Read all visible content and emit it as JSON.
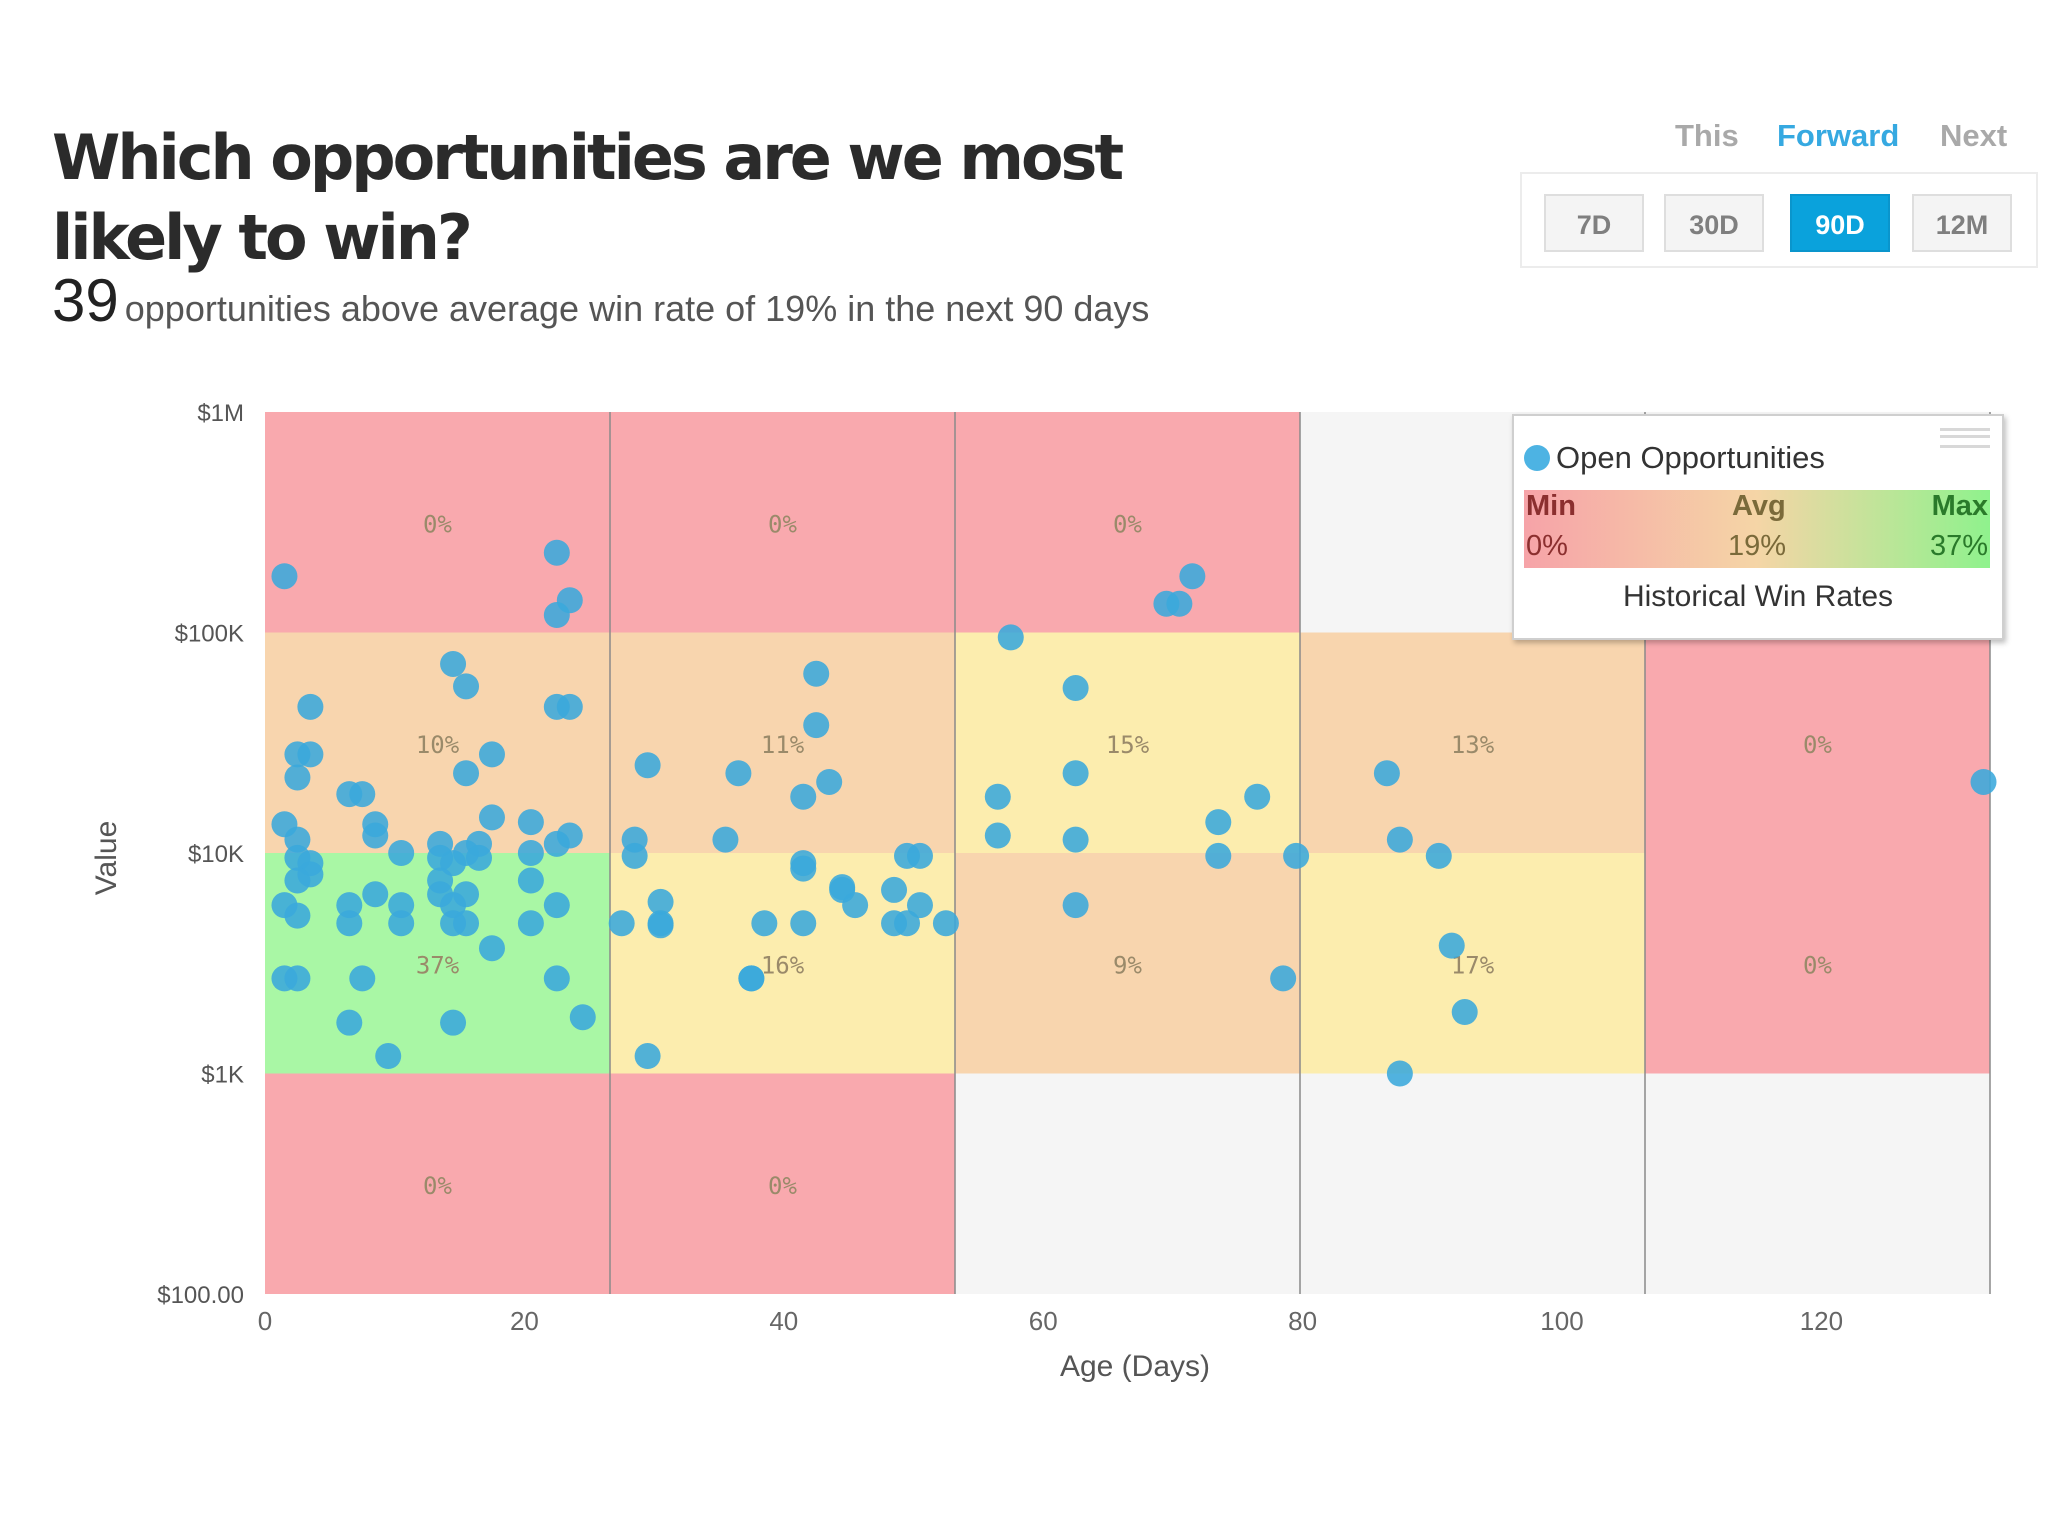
{
  "header": {
    "title": "Which opportunities are we most likely to win?",
    "count": "39",
    "subtitle": "opportunities above average win rate of 19% in the next 90 days"
  },
  "period_toggle": {
    "items": [
      "This",
      "Forward",
      "Next"
    ],
    "active": "Forward"
  },
  "range_buttons": {
    "items": [
      "7D",
      "30D",
      "90D",
      "12M"
    ],
    "active": "90D"
  },
  "legend": {
    "series_label": "Open Opportunities",
    "min_label": "Min",
    "avg_label": "Avg",
    "max_label": "Max",
    "min_value": "0%",
    "avg_value": "19%",
    "max_value": "37%",
    "caption": "Historical Win Rates"
  },
  "colors": {
    "point": "#3aa8dc",
    "accent": "#36a9e1",
    "button_active": "#0aa2dc",
    "cell_red": "#f9a9ae",
    "cell_orange": "#f8d5ae",
    "cell_yellow": "#fcedae",
    "cell_green": "#a9f7a5",
    "cell_empty": "#f5f5f5"
  },
  "chart_data": {
    "type": "scatter",
    "title": "",
    "xlabel": "Age (Days)",
    "ylabel": "Value",
    "xlim": [
      0,
      133
    ],
    "ylim": [
      100,
      1000000
    ],
    "yscale": "log",
    "x_ticks": [
      0,
      20,
      40,
      60,
      80,
      100,
      120
    ],
    "y_ticks": [
      100,
      1000,
      10000,
      100000,
      1000000
    ],
    "y_tick_labels": [
      "$100.00",
      "$1K",
      "$10K",
      "$100K",
      "$1M"
    ],
    "x_bin_edges": [
      0,
      26.6,
      53.2,
      79.8,
      106.4,
      133
    ],
    "y_bin_edges": [
      100,
      1000,
      10000,
      100000,
      1000000
    ],
    "win_rate_cells": [
      {
        "col": 0,
        "row": 0,
        "label": "",
        "color": "red"
      },
      {
        "col": 1,
        "row": 0,
        "label": "",
        "color": "red"
      },
      {
        "col": 2,
        "row": 0,
        "label": "",
        "color": "empty"
      },
      {
        "col": 3,
        "row": 0,
        "label": "",
        "color": "empty"
      },
      {
        "col": 4,
        "row": 0,
        "label": "",
        "color": "empty"
      },
      {
        "col": 0,
        "row": 1,
        "label": "37%",
        "color": "green"
      },
      {
        "col": 1,
        "row": 1,
        "label": "16%",
        "color": "yellow"
      },
      {
        "col": 2,
        "row": 1,
        "label": "9%",
        "color": "orange"
      },
      {
        "col": 3,
        "row": 1,
        "label": "17%",
        "color": "yellow"
      },
      {
        "col": 4,
        "row": 1,
        "label": "0%",
        "color": "red"
      },
      {
        "col": 0,
        "row": 2,
        "label": "10%",
        "color": "orange"
      },
      {
        "col": 1,
        "row": 2,
        "label": "11%",
        "color": "orange"
      },
      {
        "col": 2,
        "row": 2,
        "label": "15%",
        "color": "yellow"
      },
      {
        "col": 3,
        "row": 2,
        "label": "13%",
        "color": "orange"
      },
      {
        "col": 4,
        "row": 2,
        "label": "0%",
        "color": "red"
      },
      {
        "col": 0,
        "row": 3,
        "label": "0%",
        "color": "red"
      },
      {
        "col": 1,
        "row": 3,
        "label": "0%",
        "color": "red"
      },
      {
        "col": 2,
        "row": 3,
        "label": "0%",
        "color": "red"
      },
      {
        "col": 3,
        "row": 3,
        "label": "",
        "color": "empty"
      },
      {
        "col": 4,
        "row": 3,
        "label": "",
        "color": "empty"
      }
    ],
    "row0_labels": {
      "0": "0%",
      "1": "0%"
    },
    "series": [
      {
        "name": "Open Opportunities",
        "points": [
          [
            1.5,
            180000
          ],
          [
            22.5,
            230000
          ],
          [
            23.5,
            140000
          ],
          [
            22.5,
            120000
          ],
          [
            14.5,
            72000
          ],
          [
            15.5,
            57000
          ],
          [
            3.5,
            46000
          ],
          [
            22.5,
            46000
          ],
          [
            23.5,
            46000
          ],
          [
            2.5,
            28000
          ],
          [
            3.5,
            28000
          ],
          [
            17.5,
            28000
          ],
          [
            2.5,
            22000
          ],
          [
            15.5,
            23000
          ],
          [
            6.5,
            18500
          ],
          [
            7.5,
            18500
          ],
          [
            17.5,
            14500
          ],
          [
            20.5,
            13800
          ],
          [
            1.5,
            13500
          ],
          [
            8.5,
            13500
          ],
          [
            8.5,
            12000
          ],
          [
            2.5,
            11500
          ],
          [
            13.5,
            11000
          ],
          [
            16.5,
            11000
          ],
          [
            23.5,
            12000
          ],
          [
            22.5,
            11000
          ],
          [
            10.5,
            10000
          ],
          [
            15.5,
            10000
          ],
          [
            20.5,
            10000
          ],
          [
            2.5,
            9500
          ],
          [
            3.5,
            9000
          ],
          [
            13.5,
            9500
          ],
          [
            14.5,
            9000
          ],
          [
            16.5,
            9500
          ],
          [
            3.5,
            8000
          ],
          [
            2.5,
            7500
          ],
          [
            13.5,
            7500
          ],
          [
            20.5,
            7500
          ],
          [
            8.5,
            6500
          ],
          [
            13.5,
            6500
          ],
          [
            15.5,
            6500
          ],
          [
            1.5,
            5800
          ],
          [
            6.5,
            5800
          ],
          [
            10.5,
            5800
          ],
          [
            14.5,
            5800
          ],
          [
            22.5,
            5800
          ],
          [
            2.5,
            5200
          ],
          [
            6.5,
            4800
          ],
          [
            10.5,
            4800
          ],
          [
            14.5,
            4800
          ],
          [
            15.5,
            4800
          ],
          [
            20.5,
            4800
          ],
          [
            17.5,
            3700
          ],
          [
            1.5,
            2700
          ],
          [
            2.5,
            2700
          ],
          [
            7.5,
            2700
          ],
          [
            22.5,
            2700
          ],
          [
            24.5,
            1800
          ],
          [
            6.5,
            1700
          ],
          [
            14.5,
            1700
          ],
          [
            9.5,
            1200
          ],
          [
            42.5,
            65000
          ],
          [
            42.5,
            38000
          ],
          [
            29.5,
            25000
          ],
          [
            36.5,
            23000
          ],
          [
            43.5,
            21000
          ],
          [
            41.5,
            18000
          ],
          [
            28.5,
            11500
          ],
          [
            35.5,
            11500
          ],
          [
            28.5,
            9700
          ],
          [
            41.5,
            9000
          ],
          [
            41.5,
            8500
          ],
          [
            49.5,
            9700
          ],
          [
            50.5,
            9700
          ],
          [
            44.5,
            7000
          ],
          [
            44.5,
            6800
          ],
          [
            48.5,
            6800
          ],
          [
            30.5,
            6000
          ],
          [
            45.5,
            5800
          ],
          [
            50.5,
            5800
          ],
          [
            27.5,
            4800
          ],
          [
            30.5,
            4800
          ],
          [
            30.5,
            4700
          ],
          [
            38.5,
            4800
          ],
          [
            41.5,
            4800
          ],
          [
            48.5,
            4800
          ],
          [
            49.5,
            4800
          ],
          [
            52.5,
            4800
          ],
          [
            37.5,
            2700
          ],
          [
            37.5,
            2700
          ],
          [
            29.5,
            1200
          ],
          [
            71.5,
            180000
          ],
          [
            69.5,
            135000
          ],
          [
            70.5,
            135000
          ],
          [
            57.5,
            95000
          ],
          [
            62.5,
            56000
          ],
          [
            62.5,
            23000
          ],
          [
            56.5,
            18000
          ],
          [
            56.5,
            12000
          ],
          [
            62.5,
            11500
          ],
          [
            62.5,
            5800
          ],
          [
            73.5,
            13800
          ],
          [
            76.5,
            18000
          ],
          [
            73.5,
            9700
          ],
          [
            79.5,
            9700
          ],
          [
            78.5,
            2700
          ],
          [
            86.5,
            23000
          ],
          [
            87.5,
            11500
          ],
          [
            90.5,
            9700
          ],
          [
            91.5,
            3800
          ],
          [
            92.5,
            1900
          ],
          [
            87.5,
            1000
          ],
          [
            132.5,
            21000
          ]
        ]
      }
    ]
  }
}
